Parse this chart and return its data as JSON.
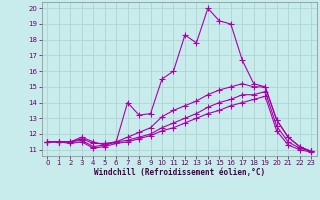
{
  "title": "",
  "xlabel": "Windchill (Refroidissement éolien,°C)",
  "background_color": "#c8ecec",
  "grid_color": "#aed4d4",
  "line_color": "#aa00aa",
  "xlim": [
    -0.5,
    23.5
  ],
  "ylim": [
    10.6,
    20.4
  ],
  "yticks": [
    11,
    12,
    13,
    14,
    15,
    16,
    17,
    18,
    19,
    20
  ],
  "xticks": [
    0,
    1,
    2,
    3,
    4,
    5,
    6,
    7,
    8,
    9,
    10,
    11,
    12,
    13,
    14,
    15,
    16,
    17,
    18,
    19,
    20,
    21,
    22,
    23
  ],
  "lines": [
    {
      "x": [
        0,
        1,
        2,
        3,
        4,
        5,
        6,
        7,
        8,
        9,
        10,
        11,
        12,
        13,
        14,
        15,
        16,
        17,
        18,
        19,
        20,
        21,
        22,
        23
      ],
      "y": [
        11.5,
        11.5,
        11.5,
        11.8,
        11.5,
        11.3,
        11.5,
        14.0,
        13.2,
        13.3,
        15.5,
        16.0,
        18.3,
        17.8,
        20.0,
        19.2,
        19.0,
        16.7,
        15.2,
        15.0,
        12.9,
        11.8,
        11.2,
        10.9
      ]
    },
    {
      "x": [
        0,
        1,
        2,
        3,
        4,
        5,
        6,
        7,
        8,
        9,
        10,
        11,
        12,
        13,
        14,
        15,
        16,
        17,
        18,
        19,
        20,
        21,
        22,
        23
      ],
      "y": [
        11.5,
        11.5,
        11.5,
        11.7,
        11.4,
        11.4,
        11.5,
        11.8,
        12.1,
        12.4,
        13.1,
        13.5,
        13.8,
        14.1,
        14.5,
        14.8,
        15.0,
        15.2,
        15.0,
        15.0,
        12.9,
        11.8,
        11.2,
        10.9
      ]
    },
    {
      "x": [
        0,
        1,
        2,
        3,
        4,
        5,
        6,
        7,
        8,
        9,
        10,
        11,
        12,
        13,
        14,
        15,
        16,
        17,
        18,
        19,
        20,
        21,
        22,
        23
      ],
      "y": [
        11.5,
        11.5,
        11.5,
        11.6,
        11.2,
        11.3,
        11.5,
        11.6,
        11.8,
        12.0,
        12.4,
        12.7,
        13.0,
        13.3,
        13.7,
        14.0,
        14.2,
        14.5,
        14.5,
        14.7,
        12.5,
        11.5,
        11.1,
        10.9
      ]
    },
    {
      "x": [
        0,
        1,
        2,
        3,
        4,
        5,
        6,
        7,
        8,
        9,
        10,
        11,
        12,
        13,
        14,
        15,
        16,
        17,
        18,
        19,
        20,
        21,
        22,
        23
      ],
      "y": [
        11.5,
        11.5,
        11.4,
        11.5,
        11.1,
        11.2,
        11.4,
        11.5,
        11.7,
        11.9,
        12.2,
        12.4,
        12.7,
        13.0,
        13.3,
        13.5,
        13.8,
        14.0,
        14.2,
        14.4,
        12.2,
        11.3,
        11.0,
        10.85
      ]
    }
  ]
}
